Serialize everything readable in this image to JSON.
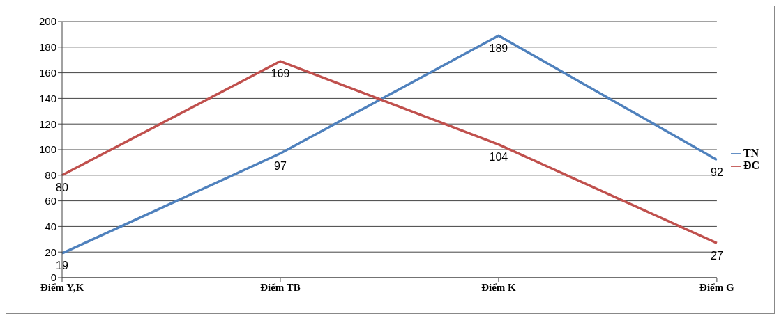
{
  "chart_data": {
    "type": "line",
    "categories": [
      "Điểm Y,K",
      "Điểm TB",
      "Điểm K",
      "Điểm G"
    ],
    "series": [
      {
        "name": "TN",
        "color": "#4f81bd",
        "values": [
          19,
          97,
          189,
          92
        ]
      },
      {
        "name": "ĐC",
        "color": "#c0504d",
        "values": [
          80,
          169,
          104,
          27
        ]
      }
    ],
    "ylim": [
      0,
      200
    ],
    "yticks": [
      0,
      20,
      40,
      60,
      80,
      100,
      120,
      140,
      160,
      180,
      200
    ],
    "grid": "y",
    "legend": "right",
    "marker": "none",
    "data_labels": true
  }
}
